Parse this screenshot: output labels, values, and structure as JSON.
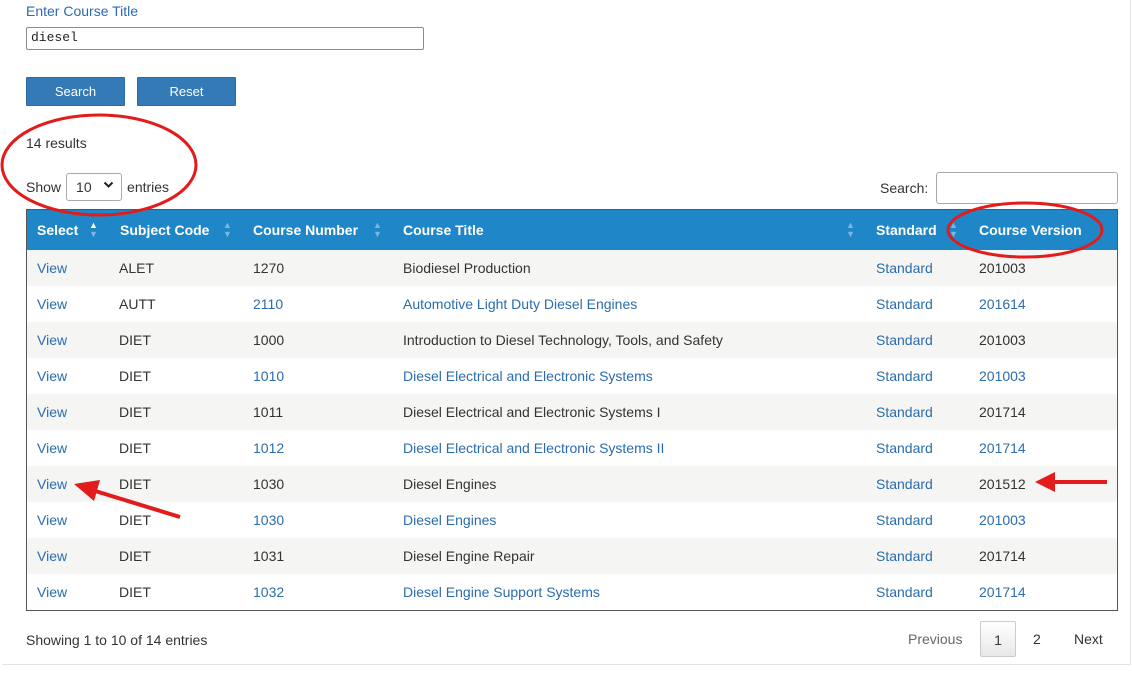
{
  "form": {
    "label": "Enter Course Title",
    "input_value": "diesel",
    "search_label": "Search",
    "reset_label": "Reset"
  },
  "results_text": "14 results",
  "length": {
    "show_label": "Show",
    "selected": "10",
    "entries_label": "entries"
  },
  "table_search_label": "Search:",
  "columns": [
    "Select",
    "Subject Code",
    "Course Number",
    "Course Title",
    "Standard",
    "Course Version"
  ],
  "rows": [
    {
      "select": "View",
      "subject": "ALET",
      "number": "1270",
      "title": "Biodiesel Production",
      "standard": "Standard",
      "version": "201003"
    },
    {
      "select": "View",
      "subject": "AUTT",
      "number": "2110",
      "title": "Automotive Light Duty Diesel Engines",
      "standard": "Standard",
      "version": "201614"
    },
    {
      "select": "View",
      "subject": "DIET",
      "number": "1000",
      "title": "Introduction to Diesel Technology, Tools, and Safety",
      "standard": "Standard",
      "version": "201003"
    },
    {
      "select": "View",
      "subject": "DIET",
      "number": "1010",
      "title": "Diesel Electrical and Electronic Systems",
      "standard": "Standard",
      "version": "201003"
    },
    {
      "select": "View",
      "subject": "DIET",
      "number": "1011",
      "title": "Diesel Electrical and Electronic Systems I",
      "standard": "Standard",
      "version": "201714"
    },
    {
      "select": "View",
      "subject": "DIET",
      "number": "1012",
      "title": "Diesel Electrical and Electronic Systems II",
      "standard": "Standard",
      "version": "201714"
    },
    {
      "select": "View",
      "subject": "DIET",
      "number": "1030",
      "title": "Diesel Engines",
      "standard": "Standard",
      "version": "201512"
    },
    {
      "select": "View",
      "subject": "DIET",
      "number": "1030",
      "title": "Diesel Engines",
      "standard": "Standard",
      "version": "201003"
    },
    {
      "select": "View",
      "subject": "DIET",
      "number": "1031",
      "title": "Diesel Engine Repair",
      "standard": "Standard",
      "version": "201714"
    },
    {
      "select": "View",
      "subject": "DIET",
      "number": "1032",
      "title": "Diesel Engine Support Systems",
      "standard": "Standard",
      "version": "201714"
    }
  ],
  "footer": {
    "info": "Showing 1 to 10 of 14 entries",
    "previous": "Previous",
    "pages": [
      "1",
      "2"
    ],
    "next": "Next"
  },
  "colors": {
    "header_bg": "#1f87c8",
    "button_bg": "#337ab7",
    "link": "#2a6cad",
    "annotation": "#e31b1b"
  }
}
